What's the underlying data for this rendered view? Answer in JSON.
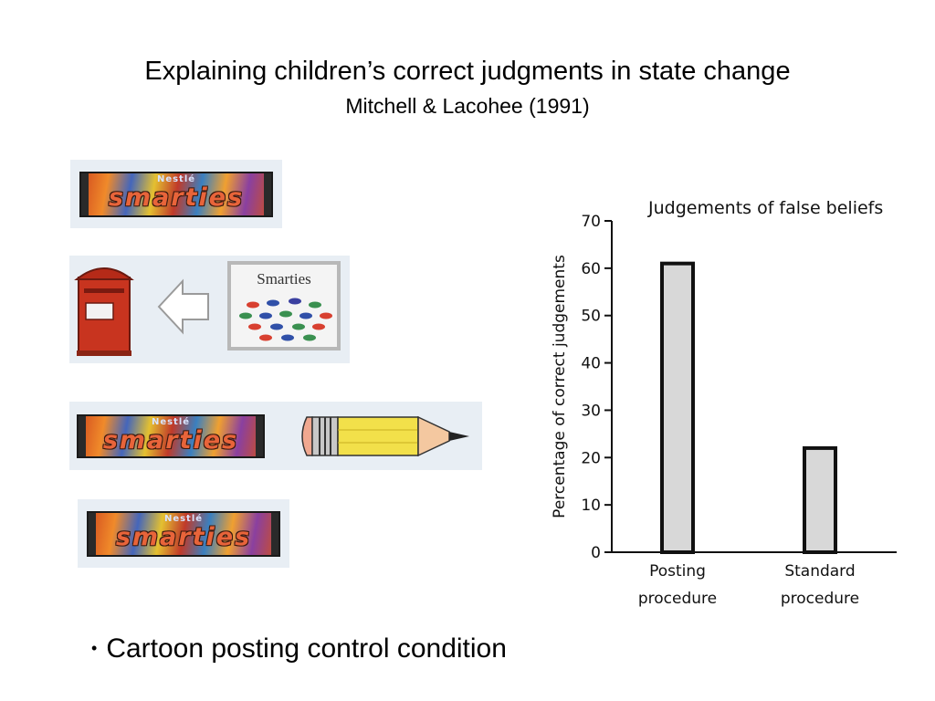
{
  "slide": {
    "title": "Explaining children’s correct judgments in state change",
    "subtitle": "Mitchell & Lacohee (1991)"
  },
  "bullets": [
    {
      "marker": "•",
      "text": "Cartoon posting control condition"
    }
  ],
  "illustrations": {
    "pack_brand_small": "Nestlé",
    "pack_brand_big": "smarties",
    "box_label": "Smarties",
    "icons": [
      "postbox-icon",
      "arrow-left-icon",
      "smarties-box-icon",
      "pencil-icon"
    ]
  },
  "chart_data": {
    "type": "bar",
    "title": "Judgements of false beliefs",
    "ylabel": "Percentage of correct judgements",
    "xlabel": "",
    "categories": [
      "Posting procedure",
      "Standard procedure"
    ],
    "category_lines": [
      [
        "Posting",
        "procedure"
      ],
      [
        "Standard",
        "procedure"
      ]
    ],
    "values": [
      61,
      22
    ],
    "ylim": [
      0,
      70
    ],
    "yticks": [
      0,
      10,
      20,
      30,
      40,
      50,
      60,
      70
    ],
    "grid": false,
    "bar_fill": "#d8d8d8",
    "bar_stroke": "#111111"
  }
}
